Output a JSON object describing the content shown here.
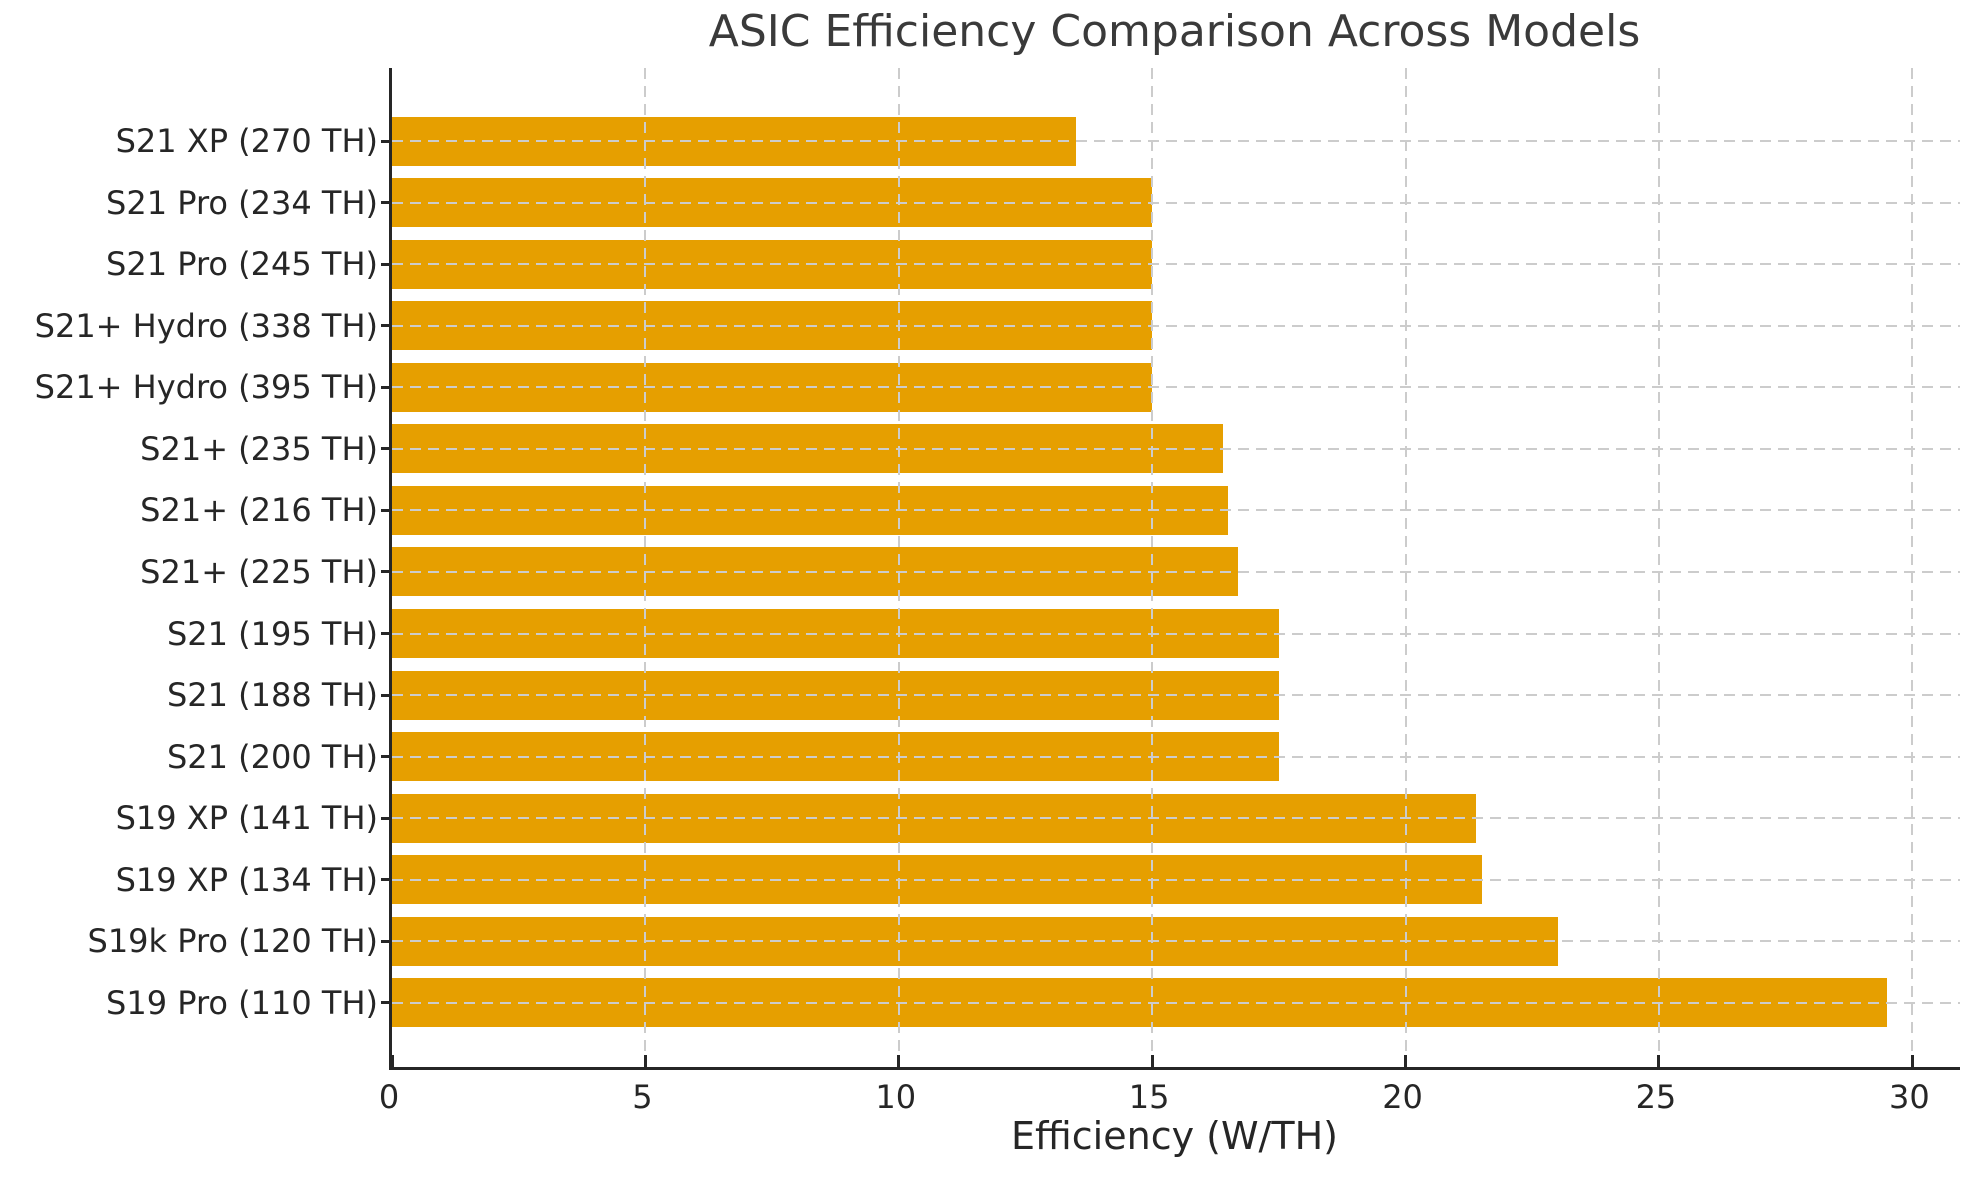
{
  "title": "ASIC Efficiency Comparison Across Models",
  "colors": {
    "bar": "#E69F00",
    "grid": "#cccccc",
    "axis": "#262626",
    "tick_text": "#262626",
    "title_text": "#3a3a3a",
    "background": "#ffffff"
  },
  "chart_data": {
    "type": "bar",
    "orientation": "horizontal",
    "title": "ASIC Efficiency Comparison Across Models",
    "xlabel": "Efficiency (W/TH)",
    "ylabel": "",
    "categories": [
      "S21 XP (270 TH)",
      "S21 Pro (234 TH)",
      "S21 Pro (245 TH)",
      "S21+ Hydro (338 TH)",
      "S21+ Hydro (395 TH)",
      "S21+ (235 TH)",
      "S21+ (216 TH)",
      "S21+ (225 TH)",
      "S21 (195 TH)",
      "S21 (188 TH)",
      "S21 (200 TH)",
      "S19 XP (141 TH)",
      "S19 XP (134 TH)",
      "S19k Pro (120 TH)",
      "S19 Pro (110 TH)"
    ],
    "values": [
      13.5,
      15.0,
      15.0,
      15.0,
      15.0,
      16.4,
      16.5,
      16.7,
      17.5,
      17.5,
      17.5,
      21.4,
      21.5,
      23.0,
      29.5
    ],
    "xticks": [
      0,
      5,
      10,
      15,
      20,
      25,
      30
    ],
    "xtick_labels": [
      "0",
      "5",
      "10",
      "15",
      "20",
      "25",
      "30"
    ],
    "xlim": [
      0,
      31
    ],
    "grid": true,
    "grid_style": "dashed",
    "legend": false
  }
}
